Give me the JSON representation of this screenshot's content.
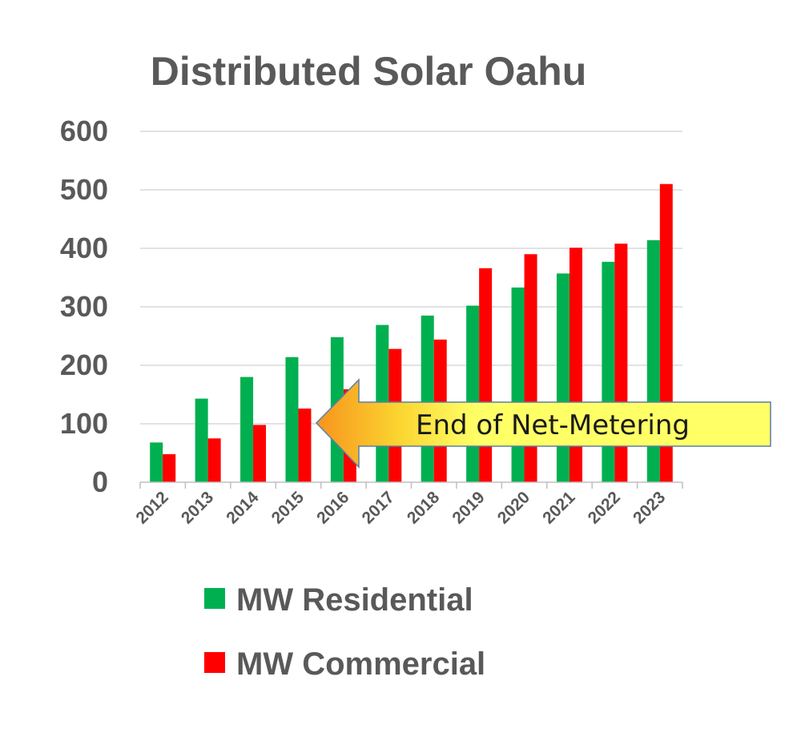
{
  "chart_data": {
    "type": "bar",
    "title": "Distributed Solar Oahu",
    "xlabel": "",
    "ylabel": "",
    "ylim": [
      0,
      600
    ],
    "yticks": [
      "600",
      "500",
      "400",
      "300",
      "200",
      "100",
      "0"
    ],
    "categories": [
      "2012",
      "2013",
      "2014",
      "2015",
      "2016",
      "2017",
      "2018",
      "2019",
      "2020",
      "2021",
      "2022",
      "2023"
    ],
    "series": [
      {
        "name": "MW Residential",
        "color": "#00b050",
        "values": [
          68,
          143,
          180,
          214,
          248,
          269,
          285,
          302,
          333,
          357,
          377,
          414
        ]
      },
      {
        "name": "MW Commercial",
        "color": "#ff0000",
        "values": [
          48,
          75,
          98,
          126,
          159,
          228,
          244,
          366,
          390,
          401,
          408,
          510
        ]
      }
    ],
    "grid": true,
    "legend": "bottom",
    "annotations": [
      {
        "text": "End of Net-Metering",
        "type": "arrow",
        "points_to": "2015"
      }
    ]
  }
}
